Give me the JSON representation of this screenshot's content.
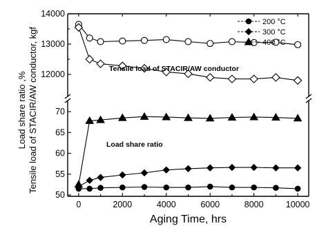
{
  "chart_data": {
    "type": "line",
    "xlabel": "Aging Time, hrs",
    "ylabel_top": "Tensile load of STACIR/AW conductor, kgf",
    "ylabel_bottom": "Load share ratio ,%",
    "xlim": [
      -500,
      10500
    ],
    "x_ticks": [
      "0",
      "2000",
      "4000",
      "6000",
      "8000",
      "10000"
    ],
    "y_top_ticks": [
      "12000",
      "13000",
      "14000"
    ],
    "y_bottom_ticks": [
      "50",
      "55",
      "60",
      "65",
      "70"
    ],
    "ylim_top": [
      11500,
      14000
    ],
    "ylim_bottom": [
      50,
      72
    ],
    "annotations": {
      "tensile": "Tensile load of STACIR/AW conductor",
      "share": "Load share ratio"
    },
    "tensile_series": [
      {
        "name": "",
        "marker": "open-circle",
        "points": [
          [
            0,
            13650
          ],
          [
            500,
            13200
          ],
          [
            1000,
            13080
          ],
          [
            2000,
            13100
          ],
          [
            3000,
            13120
          ],
          [
            4000,
            13150
          ],
          [
            5000,
            13080
          ],
          [
            6000,
            13020
          ],
          [
            7000,
            13080
          ],
          [
            8000,
            13050
          ],
          [
            9000,
            13060
          ],
          [
            10000,
            12980
          ]
        ]
      },
      {
        "name": "",
        "marker": "open-diamond",
        "points": [
          [
            0,
            13550
          ],
          [
            500,
            12500
          ],
          [
            1000,
            12350
          ],
          [
            2000,
            12280
          ],
          [
            3000,
            12200
          ],
          [
            4000,
            12080
          ],
          [
            5000,
            12020
          ],
          [
            6000,
            11900
          ],
          [
            7000,
            11850
          ],
          [
            8000,
            11850
          ],
          [
            9000,
            11900
          ],
          [
            10000,
            11800
          ]
        ]
      }
    ],
    "share_series": [
      {
        "name": "200 °C",
        "marker": "filled-circle",
        "points": [
          [
            0,
            51.5
          ],
          [
            500,
            51.5
          ],
          [
            1000,
            51.7
          ],
          [
            2000,
            51.8
          ],
          [
            3000,
            51.9
          ],
          [
            4000,
            51.8
          ],
          [
            5000,
            51.8
          ],
          [
            6000,
            52.0
          ],
          [
            7000,
            51.8
          ],
          [
            8000,
            51.8
          ],
          [
            9000,
            51.7
          ],
          [
            10000,
            51.5
          ]
        ]
      },
      {
        "name": "300 °C",
        "marker": "filled-diamond",
        "points": [
          [
            0,
            52.0
          ],
          [
            500,
            53.5
          ],
          [
            1000,
            54.2
          ],
          [
            2000,
            54.8
          ],
          [
            3000,
            55.3
          ],
          [
            4000,
            56.0
          ],
          [
            5000,
            56.3
          ],
          [
            6000,
            56.5
          ],
          [
            7000,
            56.6
          ],
          [
            8000,
            56.6
          ],
          [
            9000,
            56.5
          ],
          [
            10000,
            56.5
          ]
        ]
      },
      {
        "name": "400 °C",
        "marker": "filled-triangle",
        "points": [
          [
            0,
            52.5
          ],
          [
            500,
            67.8
          ],
          [
            1000,
            68.0
          ],
          [
            2000,
            68.5
          ],
          [
            3000,
            68.8
          ],
          [
            4000,
            68.7
          ],
          [
            5000,
            68.5
          ],
          [
            6000,
            68.4
          ],
          [
            7000,
            68.6
          ],
          [
            8000,
            68.7
          ],
          [
            9000,
            68.6
          ],
          [
            10000,
            68.4
          ]
        ]
      }
    ]
  }
}
